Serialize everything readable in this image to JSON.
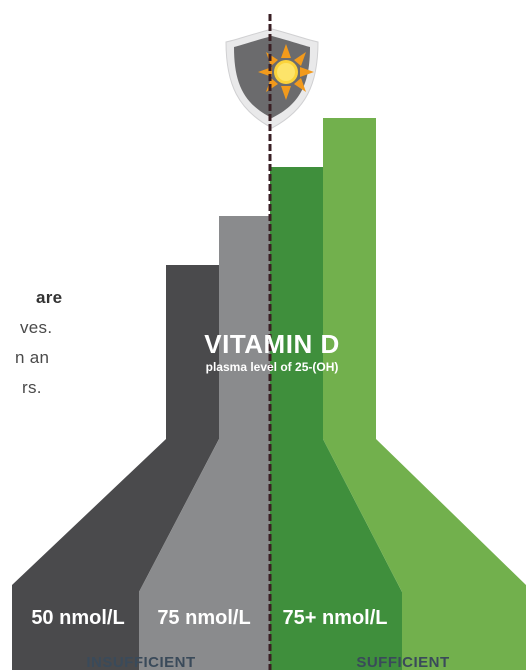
{
  "side_text": [
    "are",
    "ves.",
    "n an",
    "rs."
  ],
  "title": "VITAMIN D",
  "subtitle": "plasma level of 25-(OH)",
  "levels": [
    "50 nmol/L",
    "75 nmol/L",
    "75+ nmol/L"
  ],
  "categories": [
    "INSUFFICIENT",
    "SUFFICIENT"
  ],
  "colors": {
    "dark_gray": "#4a4a4c",
    "mid_gray": "#8a8b8d",
    "dark_green": "#3f8f3c",
    "light_green": "#72b04d",
    "divider": "#3a1f24",
    "label_text": "#ffffff",
    "category_text": "#3a4a5a"
  },
  "icons": [
    "shield-icon",
    "sun-icon"
  ]
}
